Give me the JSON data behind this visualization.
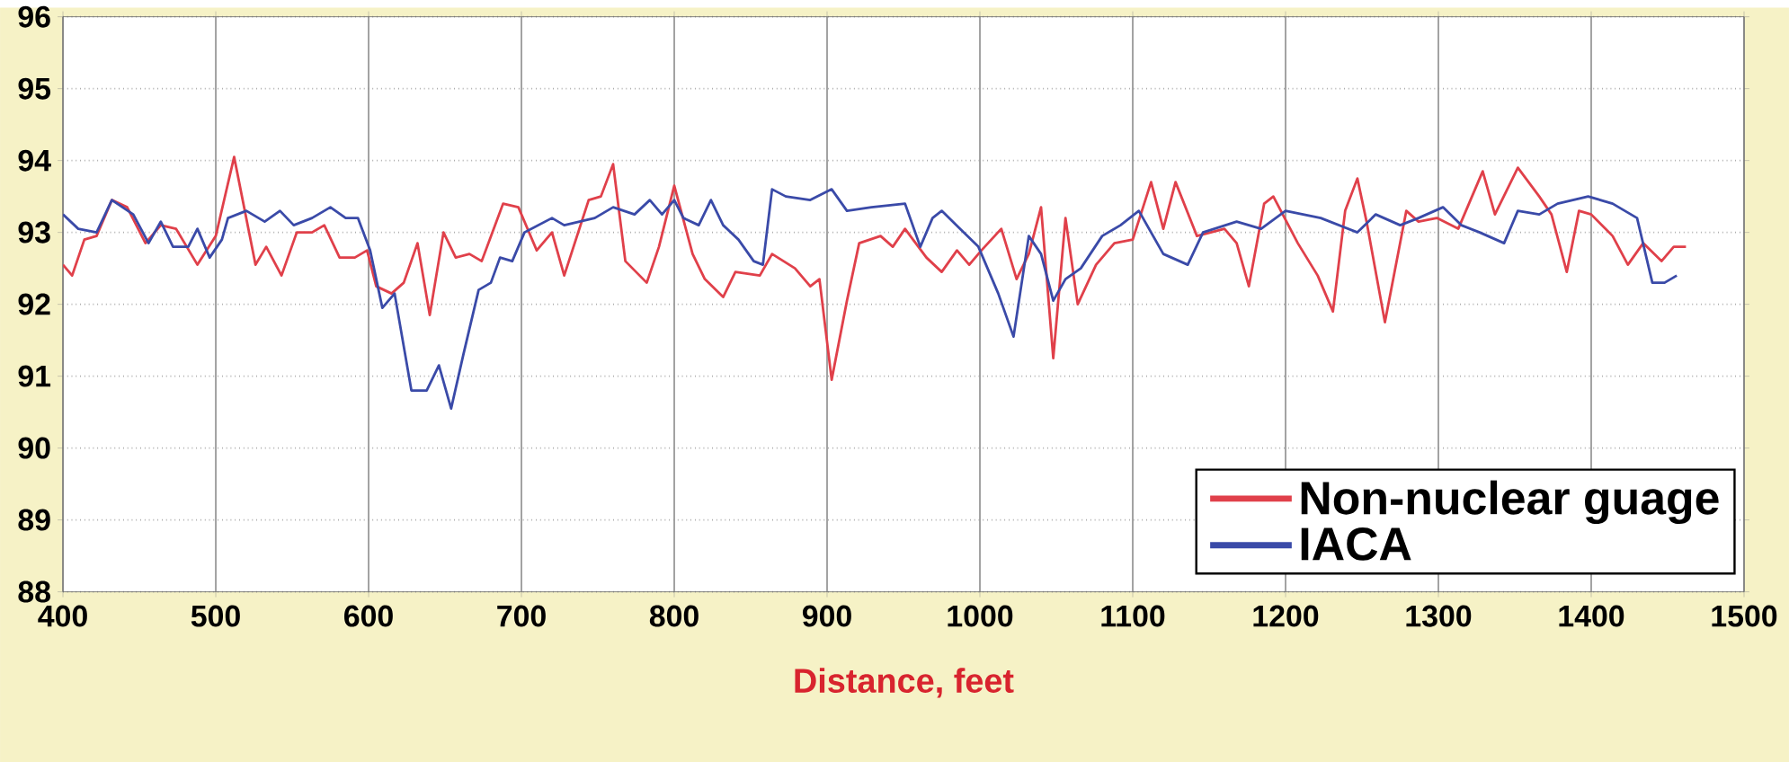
{
  "chart_data": {
    "type": "line",
    "xlabel": "Distance, feet",
    "xlim": [
      400,
      1500
    ],
    "ylim": [
      88,
      96
    ],
    "xticks": [
      400,
      500,
      600,
      700,
      800,
      900,
      1000,
      1100,
      1200,
      1300,
      1400,
      1500
    ],
    "yticks": [
      88,
      89,
      90,
      91,
      92,
      93,
      94,
      95,
      96
    ],
    "grid": true,
    "legend": "bottom right",
    "marker": "none",
    "line_style": "solid",
    "series": [
      {
        "name": "Non-nuclear guage",
        "color": "#e0404a",
        "x": [
          400,
          406,
          414,
          422,
          432,
          442,
          454,
          464,
          474,
          488,
          500,
          512,
          526,
          533,
          543,
          553,
          563,
          571,
          581,
          591,
          599,
          605,
          615,
          623,
          632,
          640,
          649,
          657,
          666,
          674,
          688,
          698,
          710,
          720,
          728,
          744,
          752,
          760,
          768,
          782,
          790,
          800,
          812,
          820,
          832,
          840,
          856,
          864,
          879,
          889,
          895,
          903,
          913,
          921,
          935,
          943,
          951,
          965,
          975,
          985,
          993,
          1001,
          1014,
          1024,
          1032,
          1040,
          1048,
          1056,
          1064,
          1076,
          1088,
          1100,
          1112,
          1120,
          1128,
          1142,
          1160,
          1168,
          1176,
          1186,
          1192,
          1208,
          1221,
          1231,
          1239,
          1247,
          1253,
          1265,
          1279,
          1287,
          1299,
          1313,
          1329,
          1337,
          1352,
          1366,
          1374,
          1384,
          1392,
          1400,
          1414,
          1424,
          1434,
          1446,
          1454,
          1462
        ],
        "values": [
          92.55,
          92.4,
          92.9,
          92.95,
          93.45,
          93.35,
          92.85,
          93.1,
          93.05,
          92.55,
          92.95,
          94.05,
          92.55,
          92.8,
          92.4,
          93.0,
          93.0,
          93.1,
          92.65,
          92.65,
          92.75,
          92.25,
          92.15,
          92.3,
          92.85,
          91.85,
          93.0,
          92.65,
          92.7,
          92.6,
          93.4,
          93.35,
          92.75,
          93.0,
          92.4,
          93.45,
          93.5,
          93.95,
          92.6,
          92.3,
          92.8,
          93.65,
          92.7,
          92.35,
          92.1,
          92.45,
          92.4,
          92.7,
          92.5,
          92.25,
          92.35,
          90.95,
          92.05,
          92.85,
          92.95,
          92.8,
          93.05,
          92.65,
          92.45,
          92.75,
          92.55,
          92.75,
          93.05,
          92.35,
          92.7,
          93.35,
          91.25,
          93.2,
          92.0,
          92.55,
          92.85,
          92.9,
          93.7,
          93.05,
          93.7,
          92.95,
          93.05,
          92.85,
          92.25,
          93.4,
          93.5,
          92.85,
          92.4,
          91.9,
          93.3,
          93.75,
          93.15,
          91.75,
          93.3,
          93.15,
          93.2,
          93.05,
          93.85,
          93.25,
          93.9,
          93.5,
          93.25,
          92.45,
          93.3,
          93.25,
          92.95,
          92.55,
          92.85,
          92.6,
          92.8,
          92.8
        ]
      },
      {
        "name": "IACA",
        "color": "#3a4aa8",
        "x": [
          400,
          410,
          422,
          432,
          446,
          456,
          464,
          472,
          482,
          488,
          496,
          504,
          508,
          520,
          532,
          542,
          551,
          563,
          575,
          585,
          593,
          601,
          609,
          617,
          628,
          638,
          646,
          654,
          662,
          672,
          680,
          686,
          694,
          702,
          720,
          728,
          748,
          760,
          774,
          784,
          792,
          800,
          806,
          816,
          824,
          832,
          842,
          852,
          858,
          864,
          873,
          889,
          903,
          913,
          929,
          951,
          961,
          969,
          975,
          999,
          1012,
          1022,
          1032,
          1040,
          1048,
          1056,
          1066,
          1080,
          1092,
          1104,
          1120,
          1136,
          1146,
          1168,
          1184,
          1200,
          1223,
          1247,
          1259,
          1275,
          1287,
          1303,
          1315,
          1327,
          1343,
          1352,
          1366,
          1378,
          1398,
          1414,
          1430,
          1440,
          1448,
          1456
        ],
        "values": [
          93.25,
          93.05,
          93.0,
          93.45,
          93.25,
          92.85,
          93.15,
          92.8,
          92.8,
          93.05,
          92.65,
          92.9,
          93.2,
          93.3,
          93.15,
          93.3,
          93.1,
          93.2,
          93.35,
          93.2,
          93.2,
          92.75,
          91.95,
          92.15,
          90.8,
          90.8,
          91.15,
          90.55,
          91.3,
          92.2,
          92.3,
          92.65,
          92.6,
          93.0,
          93.2,
          93.1,
          93.2,
          93.35,
          93.25,
          93.45,
          93.25,
          93.45,
          93.2,
          93.1,
          93.45,
          93.1,
          92.9,
          92.6,
          92.55,
          93.6,
          93.5,
          93.45,
          93.6,
          93.3,
          93.35,
          93.4,
          92.8,
          93.2,
          93.3,
          92.8,
          92.15,
          91.55,
          92.95,
          92.7,
          92.05,
          92.35,
          92.5,
          92.95,
          93.1,
          93.3,
          92.7,
          92.55,
          93.0,
          93.15,
          93.05,
          93.3,
          93.2,
          93.0,
          93.25,
          93.1,
          93.2,
          93.35,
          93.1,
          93.0,
          92.85,
          93.3,
          93.25,
          93.4,
          93.5,
          93.4,
          93.2,
          92.3,
          92.3,
          92.4
        ]
      }
    ]
  }
}
